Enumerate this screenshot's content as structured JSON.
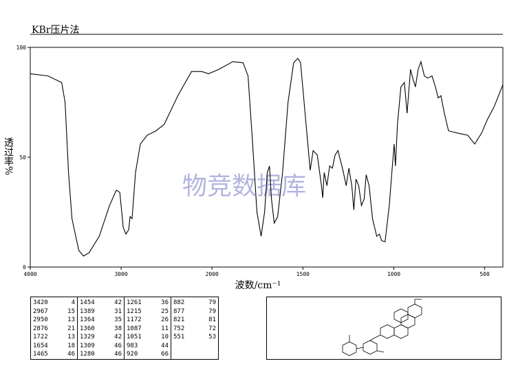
{
  "chart_data": {
    "type": "line",
    "title": "KBr压片法",
    "y_label": "透过率%",
    "x_label": "波数/cm⁻¹",
    "watermark": "物竞数据库",
    "x": [
      4000,
      3805,
      3654,
      3617,
      3579,
      3541,
      3466,
      3414,
      3353,
      3241,
      3128,
      3053,
      3015,
      2977,
      2947,
      2917,
      2902,
      2880,
      2842,
      2789,
      2714,
      2617,
      2526,
      2376,
      2226,
      2113,
      2038,
      1962,
      1886,
      1829,
      1802,
      1779,
      1753,
      1730,
      1711,
      1696,
      1684,
      1673,
      1658,
      1639,
      1612,
      1582,
      1551,
      1528,
      1513,
      1486,
      1460,
      1444,
      1421,
      1398,
      1391,
      1383,
      1368,
      1353,
      1338,
      1323,
      1307,
      1292,
      1277,
      1262,
      1247,
      1231,
      1220,
      1208,
      1193,
      1178,
      1163,
      1152,
      1136,
      1117,
      1094,
      1079,
      1067,
      1048,
      1025,
      1006,
      998,
      991,
      980,
      961,
      942,
      927,
      908,
      896,
      881,
      866,
      851,
      832,
      813,
      790,
      771,
      756,
      741,
      722,
      699,
      650,
      593,
      555,
      517,
      486,
      448,
      400
    ],
    "series": [
      {
        "name": null,
        "color": "#000000",
        "values": [
          88,
          87,
          84,
          75,
          43,
          22,
          7.5,
          5,
          6.5,
          14,
          28,
          35,
          34,
          18,
          15,
          17,
          23,
          22,
          43,
          56,
          60,
          62,
          65,
          78,
          89,
          89,
          88,
          90,
          93.5,
          93,
          87,
          59,
          25,
          14,
          25,
          43,
          46,
          31,
          20,
          23,
          43,
          75,
          93,
          95,
          93,
          68,
          44,
          53,
          51,
          37,
          31.5,
          43,
          37,
          46,
          45,
          51,
          53,
          48,
          43,
          37,
          45,
          37,
          26,
          40,
          37,
          28,
          31,
          42,
          37,
          22,
          14,
          15,
          12,
          11.5,
          28,
          48,
          56,
          46,
          65,
          82,
          84,
          70,
          90,
          86,
          82,
          90,
          93.5,
          87,
          86,
          87,
          82,
          77,
          78,
          70,
          62,
          61,
          60,
          56,
          61,
          67,
          73,
          83
        ]
      }
    ],
    "xlim": [
      4000,
      400
    ],
    "x_break": 2000,
    "x_break_scale": 2,
    "xticks": [
      4000,
      3000,
      2000,
      1500,
      1000,
      500
    ],
    "ylim": [
      0,
      100
    ],
    "yticks": [
      0,
      50,
      100
    ],
    "peaks": [
      [
        [
          3420,
          4
        ],
        [
          2967,
          15
        ],
        [
          2950,
          13
        ],
        [
          2876,
          21
        ],
        [
          1722,
          13
        ],
        [
          1654,
          18
        ],
        [
          1465,
          46
        ]
      ],
      [
        [
          1454,
          42
        ],
        [
          1389,
          31
        ],
        [
          1364,
          35
        ],
        [
          1360,
          38
        ],
        [
          1329,
          42
        ],
        [
          1309,
          46
        ],
        [
          1280,
          46
        ]
      ],
      [
        [
          1261,
          36
        ],
        [
          1215,
          25
        ],
        [
          1172,
          26
        ],
        [
          1087,
          11
        ],
        [
          1051,
          10
        ],
        [
          983,
          44
        ],
        [
          920,
          66
        ]
      ],
      [
        [
          882,
          79
        ],
        [
          877,
          79
        ],
        [
          821,
          81
        ],
        [
          752,
          72
        ],
        [
          551,
          53
        ]
      ]
    ]
  }
}
